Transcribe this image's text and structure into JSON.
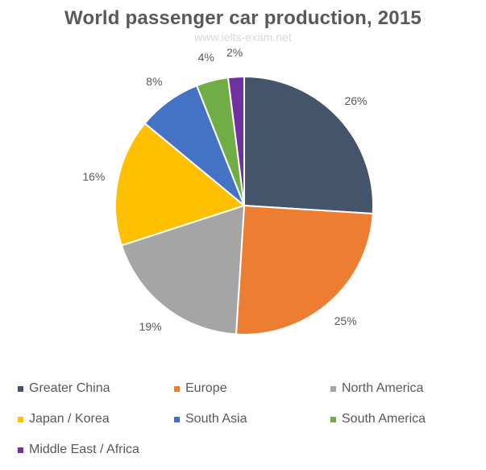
{
  "title": "World passenger car production, 2015",
  "watermark": "www.ielts-exam.net",
  "chart_data": {
    "type": "pie",
    "title": "World passenger car production, 2015",
    "categories": [
      "Greater China",
      "Europe",
      "North America",
      "Japan / Korea",
      "South Asia",
      "South America",
      "Middle East / Africa"
    ],
    "values": [
      26,
      25,
      19,
      16,
      8,
      4,
      2
    ],
    "labels": [
      "26%",
      "25%",
      "19%",
      "16%",
      "8%",
      "4%",
      "2%"
    ],
    "colors": [
      "#44546A",
      "#ED7D31",
      "#A5A5A5",
      "#FFC000",
      "#4472C4",
      "#70AD47",
      "#7030A0"
    ],
    "unit": "%",
    "start_angle": "12 o'clock",
    "direction": "clockwise",
    "legend_position": "bottom"
  },
  "legend": [
    {
      "label": "Greater China",
      "color": "#44546A"
    },
    {
      "label": "Europe",
      "color": "#ED7D31"
    },
    {
      "label": "North America",
      "color": "#A5A5A5"
    },
    {
      "label": "Japan / Korea",
      "color": "#FFC000"
    },
    {
      "label": "South Asia",
      "color": "#4472C4"
    },
    {
      "label": "South America",
      "color": "#70AD47"
    },
    {
      "label": "Middle East / Africa",
      "color": "#7030A0"
    }
  ]
}
